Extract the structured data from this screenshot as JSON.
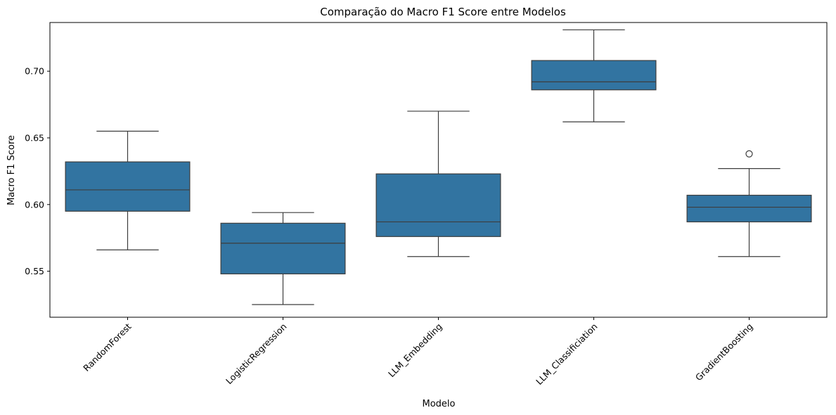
{
  "chart_data": {
    "type": "box",
    "title": "Comparação do Macro F1 Score entre Modelos",
    "xlabel": "Modelo",
    "ylabel": "Macro F1 Score",
    "ylim": [
      0.5155,
      0.7365
    ],
    "yticks": [
      0.55,
      0.6,
      0.65,
      0.7
    ],
    "ytick_labels": [
      "0.55",
      "0.60",
      "0.65",
      "0.70"
    ],
    "grid": false,
    "color": "#3274a1",
    "categories": [
      "RandomForest",
      "LogisticRegression",
      "LLM_Embedding",
      "LLM_Classificiation",
      "GradientBoosting"
    ],
    "boxes": [
      {
        "category": "RandomForest",
        "whisker_low": 0.566,
        "q1": 0.595,
        "median": 0.611,
        "q3": 0.632,
        "whisker_high": 0.655,
        "outliers": []
      },
      {
        "category": "LogisticRegression",
        "whisker_low": 0.525,
        "q1": 0.548,
        "median": 0.571,
        "q3": 0.586,
        "whisker_high": 0.594,
        "outliers": []
      },
      {
        "category": "LLM_Embedding",
        "whisker_low": 0.561,
        "q1": 0.576,
        "median": 0.587,
        "q3": 0.623,
        "whisker_high": 0.67,
        "outliers": []
      },
      {
        "category": "LLM_Classificiation",
        "whisker_low": 0.662,
        "q1": 0.686,
        "median": 0.692,
        "q3": 0.708,
        "whisker_high": 0.731,
        "outliers": []
      },
      {
        "category": "GradientBoosting",
        "whisker_low": 0.561,
        "q1": 0.587,
        "median": 0.598,
        "q3": 0.607,
        "whisker_high": 0.627,
        "outliers": [
          0.638
        ]
      }
    ]
  }
}
